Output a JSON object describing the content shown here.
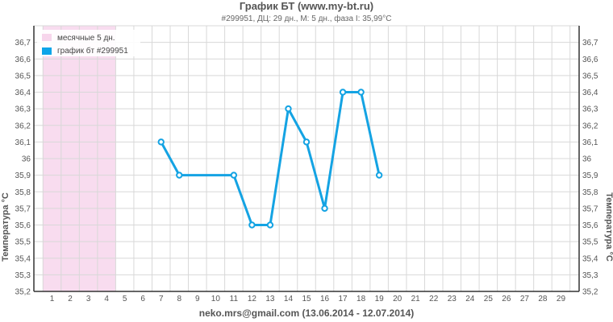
{
  "chart_data": {
    "type": "line",
    "title": "График БТ (www.my-bt.ru)",
    "subtitle": "#299951, ДЦ: 29 дн., М: 5 дн., фаза I: 35,99°C",
    "xlabel": "neko.mrs@gmail.com (13.06.2014 - 12.07.2014)",
    "ylabel_left": "Температура °С",
    "ylabel_right": "Температура °С",
    "x_ticks": [
      1,
      2,
      3,
      4,
      5,
      6,
      7,
      8,
      9,
      10,
      11,
      12,
      13,
      14,
      15,
      16,
      17,
      18,
      19,
      20,
      21,
      22,
      23,
      24,
      25,
      26,
      27,
      28,
      29
    ],
    "xlim": [
      0,
      30
    ],
    "ylim": [
      35.2,
      36.8
    ],
    "y_ticks": [
      "35,2",
      "35,3",
      "35,4",
      "35,5",
      "35,6",
      "35,7",
      "35,8",
      "35,9",
      "36",
      "36,1",
      "36,2",
      "36,3",
      "36,4",
      "36,5",
      "36,6",
      "36,7"
    ],
    "grid": true,
    "legend_position": "top-left",
    "legend": [
      {
        "label": "месячные 5 дн.",
        "color": "#f7d6ec"
      },
      {
        "label": "график бт #299951",
        "color": "#0ea5e9"
      }
    ],
    "menses_days": [
      1,
      5
    ],
    "series": [
      {
        "name": "график бт #299951",
        "color": "#14a3e3",
        "x": [
          7,
          8,
          11,
          12,
          13,
          14,
          15,
          16,
          17,
          18,
          19
        ],
        "y": [
          36.1,
          35.9,
          35.9,
          35.6,
          35.6,
          36.3,
          36.1,
          35.7,
          36.4,
          36.4,
          35.9
        ]
      }
    ]
  }
}
